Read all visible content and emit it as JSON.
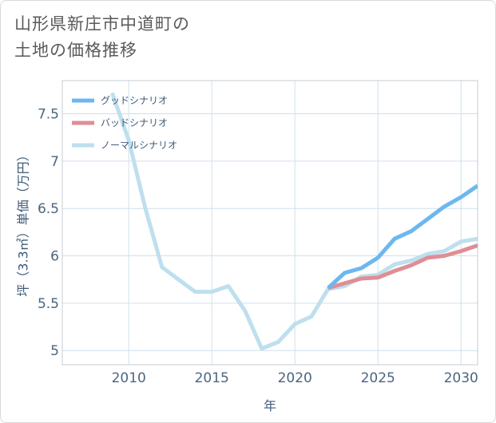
{
  "title_lines": [
    "山形県新庄市中道町の",
    "土地の価格推移"
  ],
  "chart_data": {
    "type": "line",
    "xlabel": "年",
    "ylabel": "坪（3.3㎡）単価（万円）",
    "xlim": [
      2006,
      2031
    ],
    "ylim": [
      4.85,
      7.85
    ],
    "x_ticks": [
      2010,
      2015,
      2020,
      2025,
      2030
    ],
    "y_ticks": [
      5,
      5.5,
      6,
      6.5,
      7,
      7.5
    ],
    "y_tick_labels": [
      "5",
      "5.5",
      "6",
      "6.5",
      "7",
      "7.5"
    ],
    "grid": true,
    "legend_position": "top-left",
    "series": [
      {
        "name": "グッドシナリオ",
        "color": "#6cb8ee",
        "x": [
          2022,
          2023,
          2024,
          2025,
          2026,
          2027,
          2028,
          2029,
          2030,
          2031
        ],
        "y": [
          5.66,
          5.82,
          5.87,
          5.98,
          6.18,
          6.26,
          6.39,
          6.52,
          6.62,
          6.74
        ]
      },
      {
        "name": "バッドシナリオ",
        "color": "#df8e94",
        "x": [
          2022,
          2023,
          2024,
          2025,
          2026,
          2027,
          2028,
          2029,
          2030,
          2031
        ],
        "y": [
          5.66,
          5.71,
          5.76,
          5.77,
          5.84,
          5.9,
          5.98,
          6.0,
          6.05,
          6.11
        ]
      },
      {
        "name": "ノーマルシナリオ",
        "color": "#bedfee",
        "x": [
          2009,
          2010,
          2011,
          2012,
          2013,
          2014,
          2015,
          2016,
          2017,
          2018,
          2019,
          2020,
          2021,
          2022,
          2023,
          2024,
          2025,
          2026,
          2027,
          2028,
          2029,
          2030,
          2031
        ],
        "y": [
          7.72,
          7.22,
          6.5,
          5.88,
          5.75,
          5.62,
          5.62,
          5.68,
          5.42,
          5.02,
          5.09,
          5.28,
          5.36,
          5.65,
          5.68,
          5.78,
          5.8,
          5.91,
          5.95,
          6.02,
          6.05,
          6.15,
          6.18
        ]
      }
    ]
  }
}
